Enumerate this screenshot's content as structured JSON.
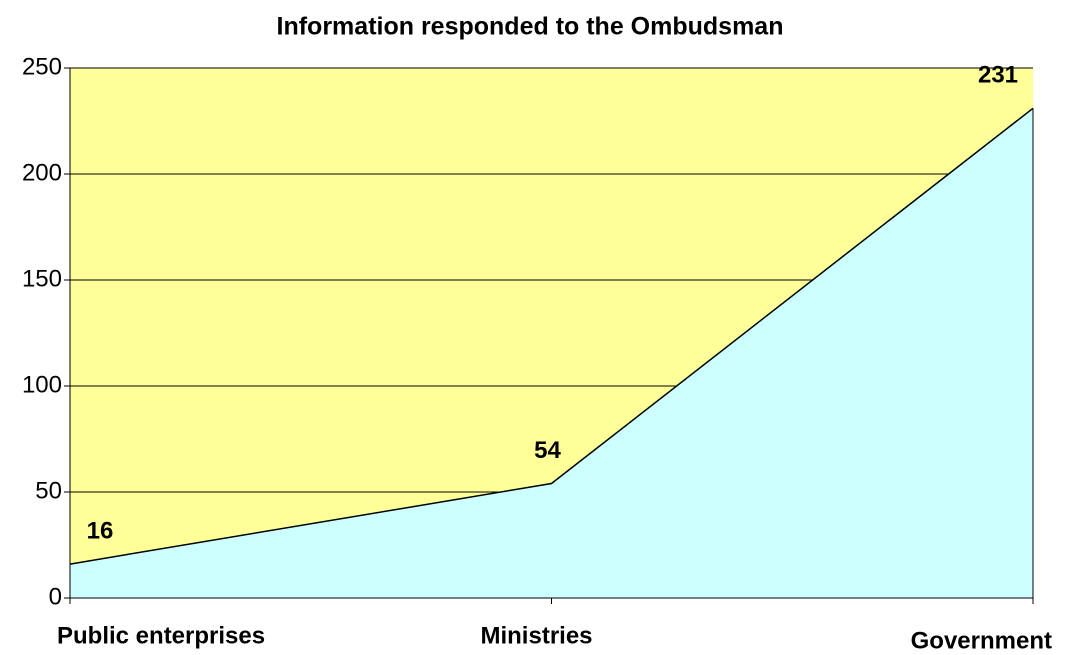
{
  "chart_data": {
    "type": "area",
    "title": "Information responded to the Ombudsman",
    "categories": [
      "Public enterprises",
      "Ministries",
      "Government"
    ],
    "values": [
      16,
      54,
      231
    ],
    "color": "#ccffff",
    "background": "#ffff99",
    "ylim": [
      0,
      250
    ],
    "yticks": [
      0,
      50,
      100,
      150,
      200,
      250
    ],
    "grid": true
  }
}
